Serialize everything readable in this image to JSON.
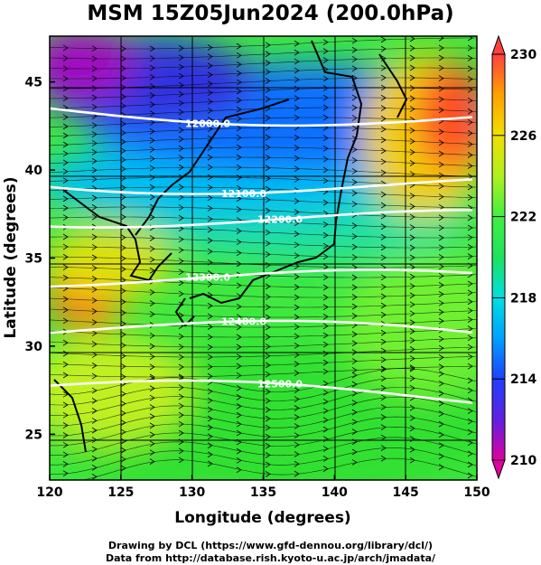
{
  "title": "MSM 15Z05Jun2024 (200.0hPa)",
  "xaxis": {
    "label": "Longitude (degrees)",
    "ticks": [
      120,
      125,
      130,
      135,
      140,
      145,
      150
    ],
    "range": [
      120,
      150
    ]
  },
  "yaxis": {
    "label": "Latitude  (degrees)",
    "ticks": [
      25,
      30,
      35,
      40,
      45
    ],
    "range": [
      22.4,
      47.6
    ]
  },
  "colorbar": {
    "ticks": [
      230,
      226,
      222,
      218,
      214,
      210
    ],
    "min": 210,
    "max": 230,
    "colors": [
      "#e000a0",
      "#6020e0",
      "#2040ff",
      "#00a0ff",
      "#00e0e0",
      "#20e060",
      "#40f040",
      "#b0f020",
      "#f0e000",
      "#ffa000",
      "#ff4040"
    ]
  },
  "contours": [
    {
      "label": "12000.0",
      "lat": 43.5
    },
    {
      "label": "12100.0",
      "lat": 39.5
    },
    {
      "label": "12200.0",
      "lat": 37.5
    },
    {
      "label": "12300.0",
      "lat": 34.0
    },
    {
      "label": "12400.0",
      "lat": 31.0
    },
    {
      "label": "12500.0",
      "lat": 27.5
    }
  ],
  "credits": {
    "line1": "Drawing by DCL (https://www.gfd-dennou.org/library/dcl/)",
    "line2": "Data from http://database.rish.kyoto-u.ac.jp/arch/jmadata/"
  }
}
